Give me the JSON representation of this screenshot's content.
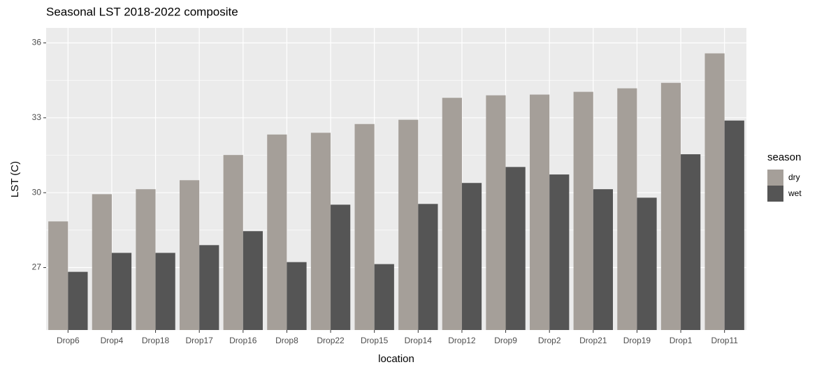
{
  "chart_data": {
    "type": "bar",
    "title": "Seasonal LST 2018-2022 composite",
    "x_label": "location",
    "y_label": "LST (C)",
    "legend_title": "season",
    "categories": [
      "Drop6",
      "Drop4",
      "Drop18",
      "Drop17",
      "Drop16",
      "Drop8",
      "Drop22",
      "Drop15",
      "Drop14",
      "Drop12",
      "Drop9",
      "Drop2",
      "Drop21",
      "Drop19",
      "Drop1",
      "Drop11"
    ],
    "series": [
      {
        "name": "dry",
        "color": "#a59f99",
        "values": [
          28.85,
          29.94,
          30.14,
          30.5,
          31.51,
          32.33,
          32.4,
          32.75,
          32.92,
          33.8,
          33.9,
          33.93,
          34.04,
          34.18,
          34.4,
          35.58
        ]
      },
      {
        "name": "wet",
        "color": "#555555",
        "values": [
          26.83,
          27.59,
          27.59,
          27.9,
          28.46,
          27.22,
          29.52,
          27.14,
          29.55,
          30.39,
          31.03,
          30.73,
          30.14,
          29.8,
          31.54,
          32.89
        ]
      }
    ],
    "ylim": [
      24.5,
      36.6
    ],
    "yticks": [
      27,
      30,
      33,
      36
    ],
    "grid": true,
    "legend": "right"
  }
}
